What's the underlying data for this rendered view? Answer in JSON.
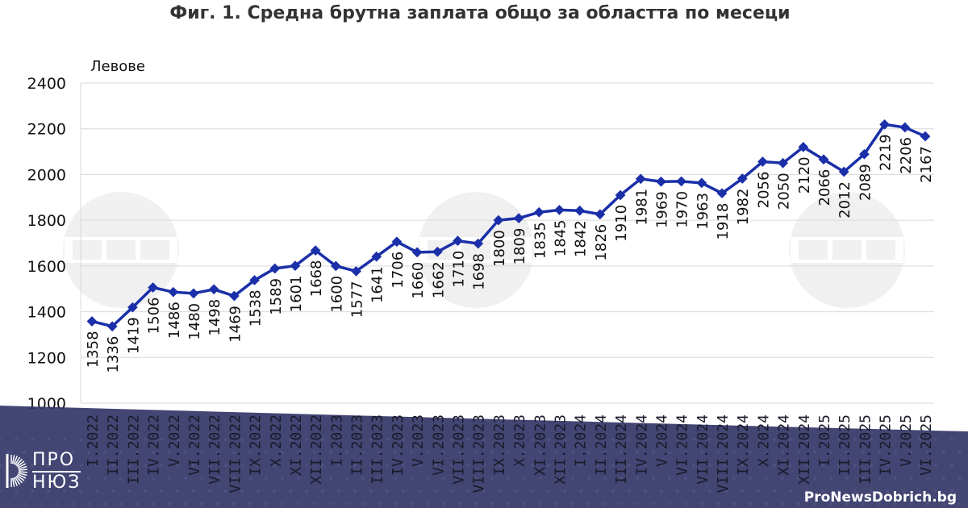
{
  "chart_data": {
    "type": "line",
    "title": "Фиг. 1. Средна брутна заплата общо за областта по месеци",
    "ylabel": "Левове",
    "xlabel": "",
    "ylim": [
      1000,
      2400
    ],
    "yticks": [
      1000,
      1200,
      1400,
      1600,
      1800,
      2000,
      2200,
      2400
    ],
    "grid": true,
    "categories": [
      "I.2022",
      "II.2022",
      "III.2022",
      "IV.2022",
      "V.2022",
      "VI.2022",
      "VII.2022",
      "VIII.2022",
      "IX.2022",
      "X.2022",
      "XI.2022",
      "XII.2022",
      "I.2023",
      "II.2023",
      "III.2023",
      "IV.2023",
      "V.2023",
      "VI.2023",
      "VII.2023",
      "VIII.2023",
      "IX.2023",
      "X.2023",
      "XI.2023",
      "XII.2023",
      "I.2024",
      "II.2024",
      "III.2024",
      "IV.2024",
      "V.2024",
      "VI.2024",
      "VII.2024",
      "VIII.2024",
      "IX.2024",
      "X.2024",
      "XI.2024",
      "XII.2024",
      "I.2025",
      "II.2025",
      "III.2025",
      "IV.2025",
      "V.2025",
      "VI.2025"
    ],
    "values": [
      1358,
      1336,
      1419,
      1506,
      1486,
      1480,
      1498,
      1469,
      1538,
      1589,
      1601,
      1668,
      1600,
      1577,
      1641,
      1706,
      1660,
      1662,
      1710,
      1698,
      1800,
      1809,
      1835,
      1845,
      1842,
      1826,
      1910,
      1981,
      1969,
      1970,
      1963,
      1918,
      1982,
      2056,
      2050,
      2120,
      2066,
      2012,
      2089,
      2219,
      2206,
      2167
    ],
    "line_color": "#1a2fa8"
  },
  "branding": {
    "site": "ProNewsDobrich.bg",
    "logo_line1": "ПРО",
    "logo_line2": "НЮЗ",
    "watermark": "БТА"
  }
}
